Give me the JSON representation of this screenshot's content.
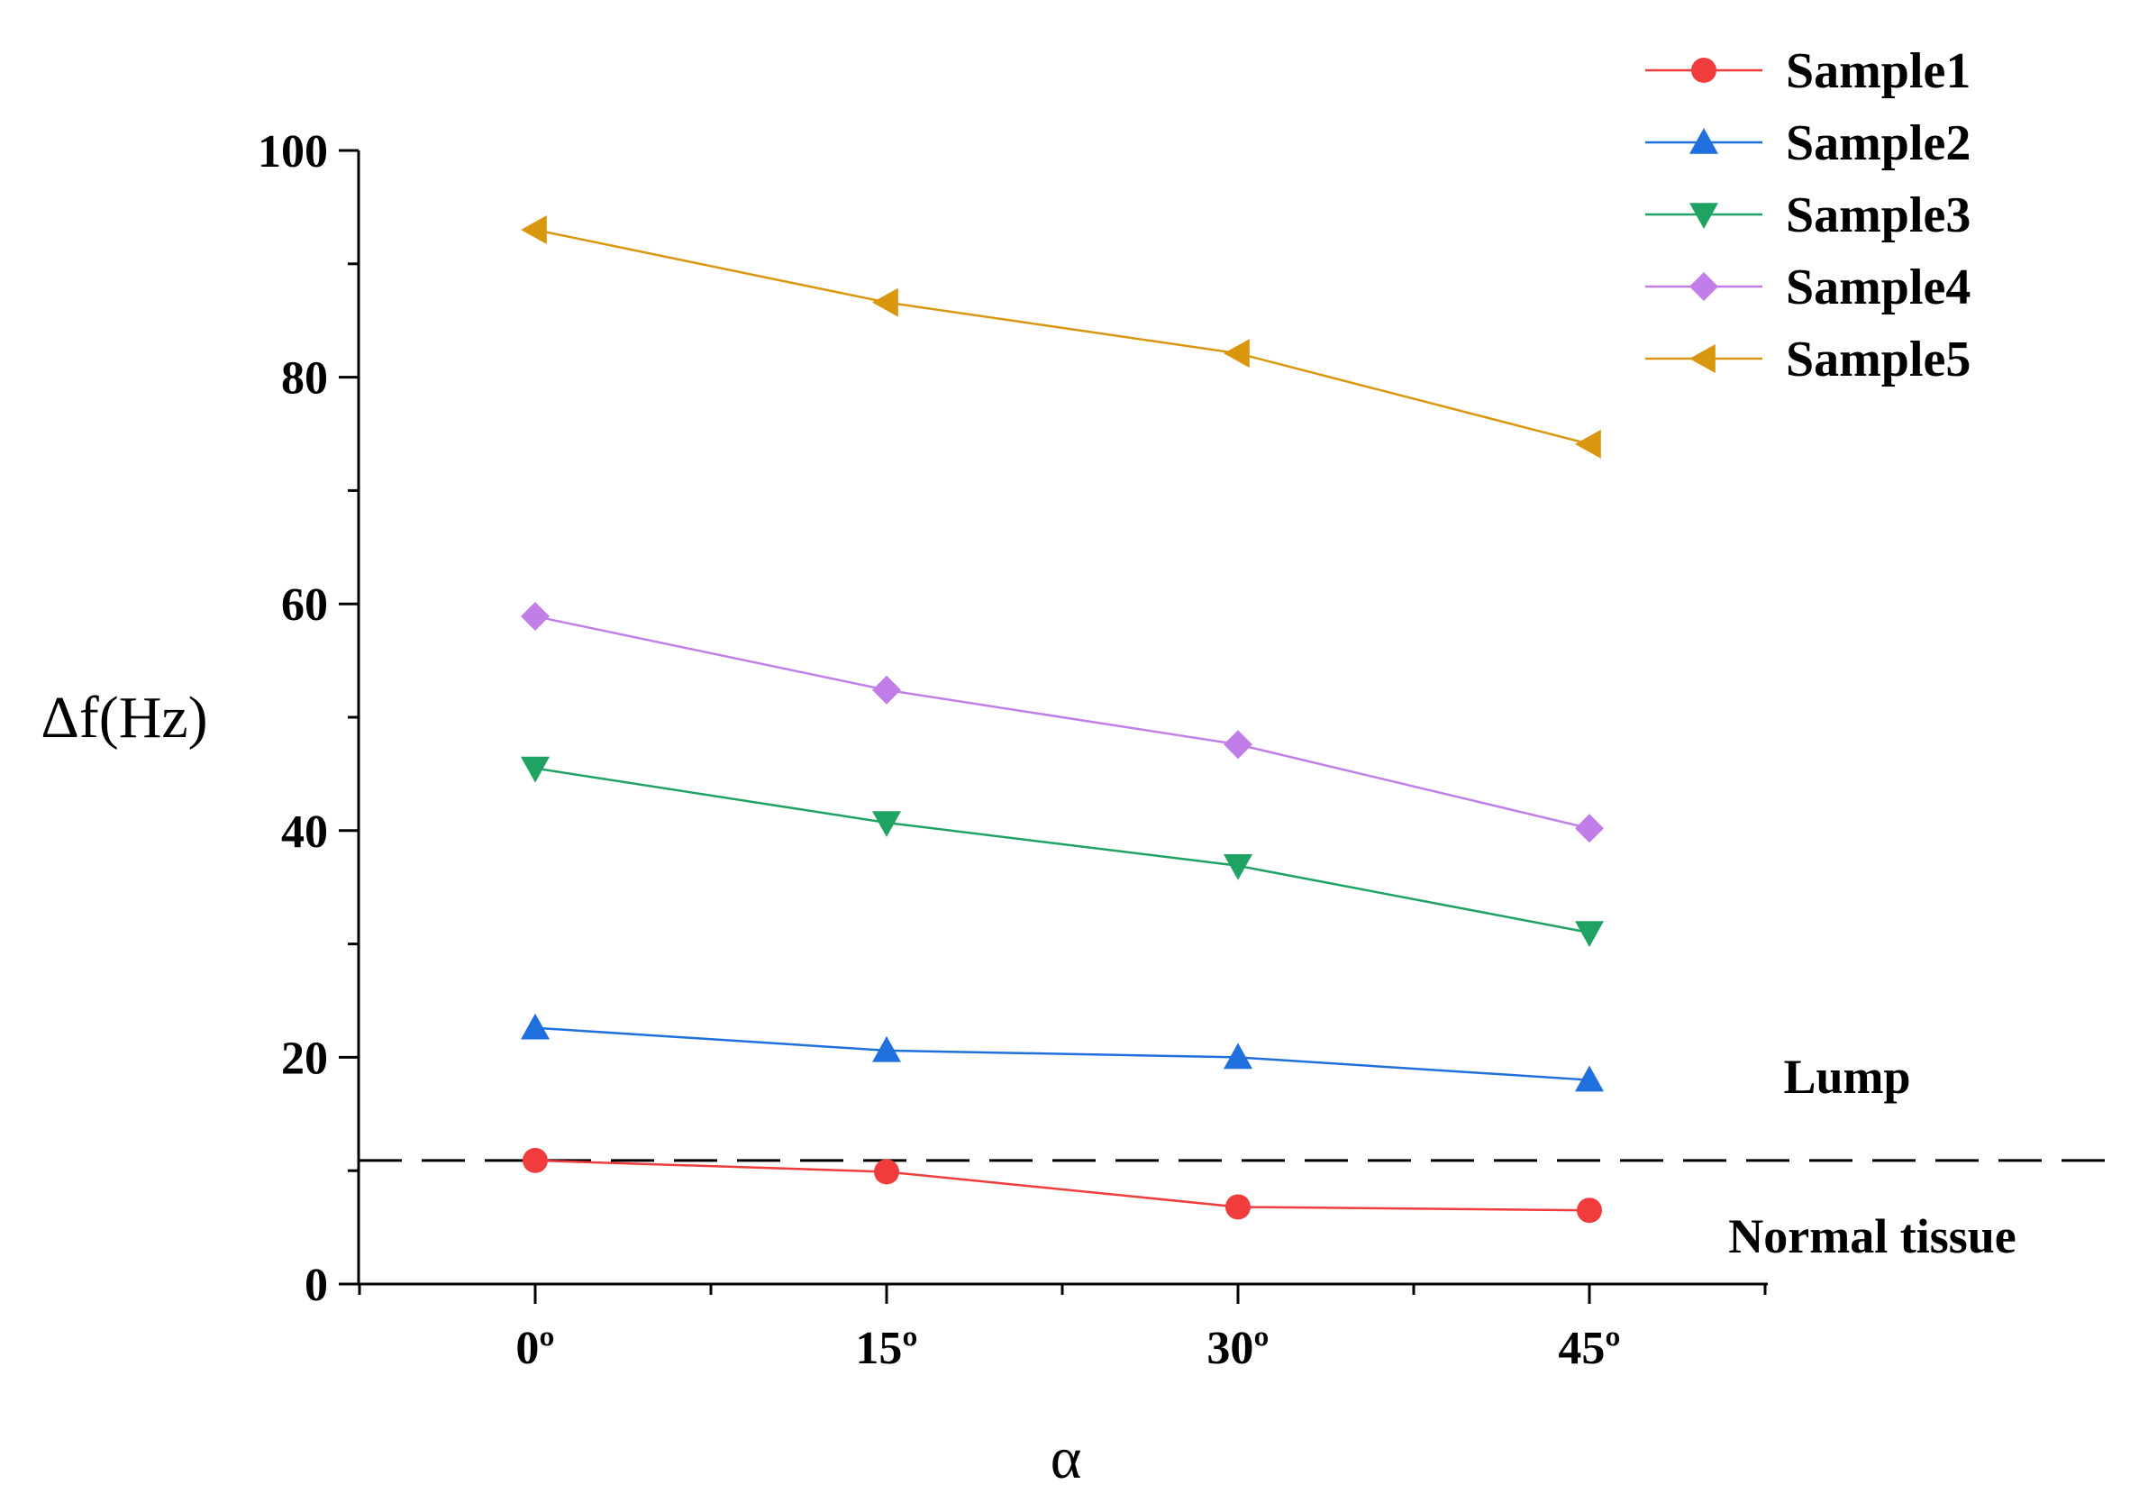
{
  "chart_data": {
    "type": "line",
    "xlabel": "α",
    "ylabel": "Δf(Hz)",
    "categories": [
      "0º",
      "15º",
      "30º",
      "45º"
    ],
    "ylim": [
      0,
      100
    ],
    "yticks": [
      "0",
      "20",
      "40",
      "60",
      "80",
      "100"
    ],
    "grid": false,
    "legend_position": "top-right",
    "series": [
      {
        "name": "Sample1",
        "values": [
          10.9,
          9.9,
          6.8,
          6.5
        ],
        "color": "#f03c3c",
        "marker": "circle"
      },
      {
        "name": "Sample2",
        "values": [
          22.6,
          20.6,
          20.0,
          18.0
        ],
        "color": "#1f6fdc",
        "marker": "triangle-up"
      },
      {
        "name": "Sample3",
        "values": [
          45.5,
          40.7,
          36.9,
          31.0
        ],
        "color": "#1fa362",
        "marker": "triangle-down"
      },
      {
        "name": "Sample4",
        "values": [
          58.9,
          52.4,
          47.6,
          40.2
        ],
        "color": "#c27ee8",
        "marker": "diamond"
      },
      {
        "name": "Sample5",
        "values": [
          93.0,
          86.6,
          82.1,
          74.1
        ],
        "color": "#d9960f",
        "marker": "triangle-left"
      }
    ],
    "threshold": {
      "value": 10.9,
      "style": "dashed"
    },
    "annotations": {
      "upper": "Lump",
      "lower": "Normal tissue"
    }
  }
}
